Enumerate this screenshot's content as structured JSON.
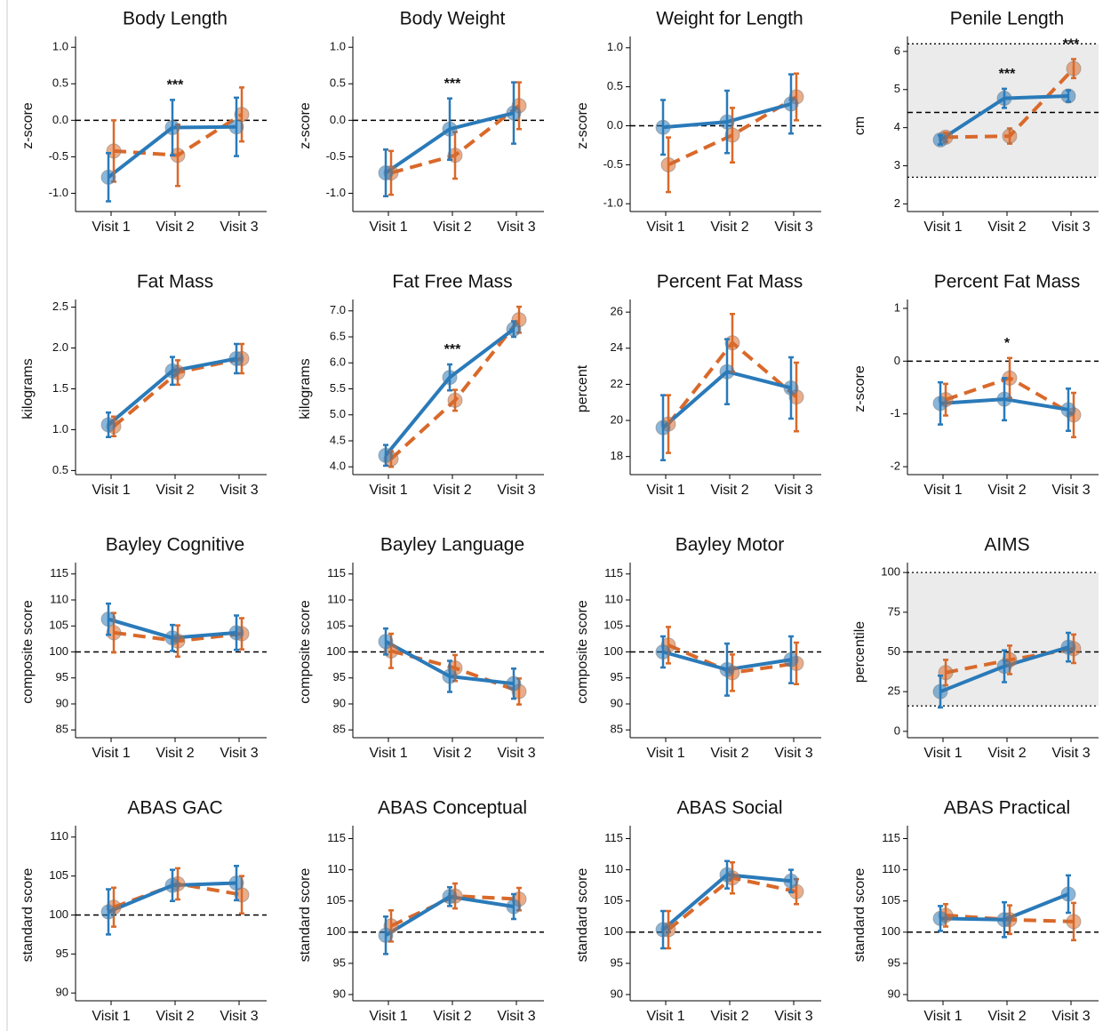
{
  "chart_data": [
    {
      "type": "line",
      "title": "Body Length",
      "ylabel": "z-score",
      "categories": [
        "Visit 1",
        "Visit 2",
        "Visit 3"
      ],
      "ylim": [
        -1.25,
        1.1
      ],
      "yticks": [
        {
          "value": 1,
          "label": "1.0"
        },
        0.5,
        {
          "value": 0,
          "label": "0.0"
        },
        -0.5,
        {
          "value": -1,
          "label": "-1.0"
        }
      ],
      "ref_lines": [
        0
      ],
      "stars": [
        null,
        "***",
        null
      ],
      "series": [
        {
          "color": "#2a7ab9",
          "values": [
            -0.78,
            -0.1,
            -0.09
          ],
          "errors": [
            0.33,
            0.38,
            0.4
          ]
        },
        {
          "color": "#d9692a",
          "dashed": true,
          "values": [
            -0.42,
            -0.48,
            0.08
          ],
          "errors": [
            0.42,
            0.42,
            0.37
          ]
        }
      ]
    },
    {
      "type": "line",
      "title": "Body Weight",
      "ylabel": "z-score",
      "categories": [
        "Visit 1",
        "Visit 2",
        "Visit 3"
      ],
      "ylim": [
        -1.25,
        1.1
      ],
      "yticks": [
        {
          "value": 1,
          "label": "1.0"
        },
        0.5,
        {
          "value": 0,
          "label": "0.0"
        },
        -0.5,
        {
          "value": -1,
          "label": "-1.0"
        }
      ],
      "ref_lines": [
        0
      ],
      "stars": [
        null,
        "***",
        null
      ],
      "series": [
        {
          "color": "#2a7ab9",
          "values": [
            -0.72,
            -0.12,
            0.1
          ],
          "errors": [
            0.32,
            0.42,
            0.42
          ]
        },
        {
          "color": "#d9692a",
          "dashed": true,
          "values": [
            -0.72,
            -0.48,
            0.2
          ],
          "errors": [
            0.3,
            0.32,
            0.32
          ]
        }
      ]
    },
    {
      "type": "line",
      "title": "Weight for Length",
      "ylabel": "z-score",
      "categories": [
        "Visit 1",
        "Visit 2",
        "Visit 3"
      ],
      "ylim": [
        -1.1,
        1.1
      ],
      "yticks": [
        {
          "value": 1,
          "label": "1.0"
        },
        0.5,
        {
          "value": 0,
          "label": "0.0"
        },
        -0.5,
        {
          "value": -1,
          "label": "-1.0"
        }
      ],
      "ref_lines": [
        0
      ],
      "series": [
        {
          "color": "#2a7ab9",
          "values": [
            -0.02,
            0.05,
            0.28
          ],
          "errors": [
            0.35,
            0.4,
            0.38
          ]
        },
        {
          "color": "#d9692a",
          "dashed": true,
          "values": [
            -0.5,
            -0.12,
            0.37
          ],
          "errors": [
            0.35,
            0.35,
            0.3
          ]
        }
      ]
    },
    {
      "type": "line",
      "title": "Penile Length",
      "ylabel": "cm",
      "categories": [
        "Visit 1",
        "Visit 2",
        "Visit 3"
      ],
      "ylim": [
        1.8,
        6.3
      ],
      "yticks": [
        2,
        3,
        4,
        5,
        6
      ],
      "ref_lines": [
        4.4
      ],
      "dotted_lines": [
        2.7,
        6.2
      ],
      "band": [
        2.7,
        6.2
      ],
      "stars": [
        null,
        "***",
        "***"
      ],
      "series": [
        {
          "color": "#2a7ab9",
          "values": [
            3.68,
            4.77,
            4.83
          ],
          "errors": [
            0.12,
            0.25,
            0.15
          ]
        },
        {
          "color": "#d9692a",
          "dashed": true,
          "values": [
            3.75,
            3.78,
            5.55
          ],
          "errors": [
            0.12,
            0.2,
            0.25
          ]
        }
      ]
    },
    {
      "type": "line",
      "title": "Fat Mass",
      "ylabel": "kilograms",
      "categories": [
        "Visit 1",
        "Visit 2",
        "Visit 3"
      ],
      "ylim": [
        0.45,
        2.55
      ],
      "yticks": [
        0.5,
        {
          "value": 1,
          "label": "1.0"
        },
        1.5,
        {
          "value": 2,
          "label": "2.0"
        },
        2.5
      ],
      "series": [
        {
          "color": "#2a7ab9",
          "values": [
            1.06,
            1.72,
            1.87
          ],
          "errors": [
            0.15,
            0.17,
            0.18
          ]
        },
        {
          "color": "#d9692a",
          "dashed": true,
          "values": [
            1.04,
            1.7,
            1.87
          ],
          "errors": [
            0.12,
            0.15,
            0.18
          ]
        }
      ]
    },
    {
      "type": "line",
      "title": "Fat Free Mass",
      "ylabel": "kilograms",
      "categories": [
        "Visit 1",
        "Visit 2",
        "Visit 3"
      ],
      "ylim": [
        3.85,
        7.15
      ],
      "yticks": [
        {
          "value": 4,
          "label": "4.0"
        },
        4.5,
        {
          "value": 5,
          "label": "5.0"
        },
        5.5,
        {
          "value": 6,
          "label": "6.0"
        },
        6.5,
        {
          "value": 7,
          "label": "7.0"
        }
      ],
      "stars": [
        null,
        "***",
        null
      ],
      "series": [
        {
          "color": "#2a7ab9",
          "values": [
            4.22,
            5.72,
            6.65
          ],
          "errors": [
            0.2,
            0.25,
            0.15
          ]
        },
        {
          "color": "#d9692a",
          "dashed": true,
          "values": [
            4.15,
            5.28,
            6.83
          ],
          "errors": [
            0.15,
            0.2,
            0.25
          ]
        }
      ]
    },
    {
      "type": "line",
      "title": "Percent Fat Mass",
      "ylabel": "percent",
      "categories": [
        "Visit 1",
        "Visit 2",
        "Visit 3"
      ],
      "ylim": [
        17,
        26.5
      ],
      "yticks": [
        18,
        20,
        22,
        24,
        26
      ],
      "series": [
        {
          "color": "#2a7ab9",
          "values": [
            19.6,
            22.7,
            21.8
          ],
          "errors": [
            1.8,
            1.8,
            1.7
          ]
        },
        {
          "color": "#d9692a",
          "dashed": true,
          "values": [
            19.8,
            24.3,
            21.3
          ],
          "errors": [
            1.6,
            1.6,
            1.9
          ]
        }
      ]
    },
    {
      "type": "line",
      "title": "Percent Fat Mass",
      "ylabel": "z-score",
      "categories": [
        "Visit 1",
        "Visit 2",
        "Visit 3"
      ],
      "ylim": [
        -2.15,
        1.1
      ],
      "yticks": [
        -2,
        -1,
        0,
        1
      ],
      "ref_lines": [
        0
      ],
      "stars": [
        null,
        "*",
        null
      ],
      "series": [
        {
          "color": "#2a7ab9",
          "values": [
            -0.8,
            -0.72,
            -0.92
          ],
          "errors": [
            0.4,
            0.4,
            0.4
          ]
        },
        {
          "color": "#d9692a",
          "dashed": true,
          "values": [
            -0.73,
            -0.32,
            -1.02
          ],
          "errors": [
            0.3,
            0.38,
            0.42
          ]
        }
      ]
    },
    {
      "type": "line",
      "title": "Bayley Cognitive",
      "ylabel": "composite score",
      "categories": [
        "Visit 1",
        "Visit 2",
        "Visit 3"
      ],
      "ylim": [
        83.5,
        116.5
      ],
      "yticks": [
        85,
        90,
        95,
        100,
        105,
        110,
        115
      ],
      "ref_lines": [
        100
      ],
      "series": [
        {
          "color": "#2a7ab9",
          "values": [
            106.3,
            102.7,
            103.7
          ],
          "errors": [
            3,
            2.5,
            3.3
          ]
        },
        {
          "color": "#d9692a",
          "dashed": true,
          "values": [
            103.7,
            102.1,
            103.5
          ],
          "errors": [
            3.8,
            3,
            3
          ]
        }
      ]
    },
    {
      "type": "line",
      "title": "Bayley Language",
      "ylabel": "composite score",
      "categories": [
        "Visit 1",
        "Visit 2",
        "Visit 3"
      ],
      "ylim": [
        83.5,
        116.5
      ],
      "yticks": [
        85,
        90,
        95,
        100,
        105,
        110,
        115
      ],
      "ref_lines": [
        100
      ],
      "series": [
        {
          "color": "#2a7ab9",
          "values": [
            102,
            95.3,
            93.9
          ],
          "errors": [
            2.5,
            3,
            2.9
          ]
        },
        {
          "color": "#d9692a",
          "dashed": true,
          "values": [
            100.2,
            96.9,
            92.4
          ],
          "errors": [
            3.3,
            2.5,
            2.5
          ]
        }
      ]
    },
    {
      "type": "line",
      "title": "Bayley Motor",
      "ylabel": "composite score",
      "categories": [
        "Visit 1",
        "Visit 2",
        "Visit 3"
      ],
      "ylim": [
        83.5,
        116.5
      ],
      "yticks": [
        85,
        90,
        95,
        100,
        105,
        110,
        115
      ],
      "ref_lines": [
        100
      ],
      "series": [
        {
          "color": "#2a7ab9",
          "values": [
            100,
            96.6,
            98.5
          ],
          "errors": [
            3,
            5,
            4.5
          ]
        },
        {
          "color": "#d9692a",
          "dashed": true,
          "values": [
            101.3,
            96,
            97.8
          ],
          "errors": [
            3.5,
            3.5,
            4
          ]
        }
      ]
    },
    {
      "type": "line",
      "title": "AIMS",
      "ylabel": "percentile",
      "categories": [
        "Visit 1",
        "Visit 2",
        "Visit 3"
      ],
      "ylim": [
        -4,
        104
      ],
      "yticks": [
        0,
        25,
        50,
        75,
        100
      ],
      "ref_lines": [
        50
      ],
      "dotted_lines": [
        16,
        100
      ],
      "band": [
        16,
        100
      ],
      "series": [
        {
          "color": "#2a7ab9",
          "values": [
            25,
            41,
            53
          ],
          "errors": [
            10,
            10,
            9
          ]
        },
        {
          "color": "#d9692a",
          "dashed": true,
          "values": [
            37,
            45,
            52
          ],
          "errors": [
            8,
            9,
            9
          ]
        }
      ]
    },
    {
      "type": "line",
      "title": "ABAS GAC",
      "ylabel": "standard score",
      "categories": [
        "Visit 1",
        "Visit 2",
        "Visit 3"
      ],
      "ylim": [
        89,
        111
      ],
      "yticks": [
        90,
        95,
        100,
        105,
        110
      ],
      "ref_lines": [
        100
      ],
      "series": [
        {
          "color": "#2a7ab9",
          "values": [
            100.4,
            103.8,
            104.1
          ],
          "errors": [
            2.9,
            2,
            2.2
          ]
        },
        {
          "color": "#d9692a",
          "dashed": true,
          "values": [
            101,
            104,
            102.6
          ],
          "errors": [
            2.5,
            2,
            2.4
          ]
        }
      ]
    },
    {
      "type": "line",
      "title": "ABAS Conceptual",
      "ylabel": "standard score",
      "categories": [
        "Visit 1",
        "Visit 2",
        "Visit 3"
      ],
      "ylim": [
        89,
        116.5
      ],
      "yticks": [
        90,
        95,
        100,
        105,
        110,
        115
      ],
      "ref_lines": [
        100
      ],
      "series": [
        {
          "color": "#2a7ab9",
          "values": [
            99.5,
            105.7,
            104.1
          ],
          "errors": [
            3,
            1.5,
            2
          ]
        },
        {
          "color": "#d9692a",
          "dashed": true,
          "values": [
            101,
            105.8,
            105.3
          ],
          "errors": [
            2.5,
            2,
            1.8
          ]
        }
      ]
    },
    {
      "type": "line",
      "title": "ABAS Social",
      "ylabel": "standard score",
      "categories": [
        "Visit 1",
        "Visit 2",
        "Visit 3"
      ],
      "ylim": [
        89,
        116.5
      ],
      "yticks": [
        90,
        95,
        100,
        105,
        110,
        115
      ],
      "ref_lines": [
        100
      ],
      "series": [
        {
          "color": "#2a7ab9",
          "values": [
            100.4,
            109.2,
            108.2
          ],
          "errors": [
            3,
            2.2,
            1.8
          ]
        },
        {
          "color": "#d9692a",
          "dashed": true,
          "values": [
            100.4,
            108.7,
            106.5
          ],
          "errors": [
            3,
            2.5,
            2
          ]
        }
      ]
    },
    {
      "type": "line",
      "title": "ABAS Practical",
      "ylabel": "standard score",
      "categories": [
        "Visit 1",
        "Visit 2",
        "Visit 3"
      ],
      "ylim": [
        89,
        116.5
      ],
      "yticks": [
        90,
        95,
        100,
        105,
        110,
        115
      ],
      "ref_lines": [
        100
      ],
      "series": [
        {
          "color": "#2a7ab9",
          "values": [
            102.2,
            102,
            106.1
          ],
          "errors": [
            2,
            2.8,
            3
          ]
        },
        {
          "color": "#d9692a",
          "dashed": true,
          "values": [
            102.7,
            102,
            101.7
          ],
          "errors": [
            1.8,
            2.3,
            3
          ]
        }
      ]
    }
  ]
}
